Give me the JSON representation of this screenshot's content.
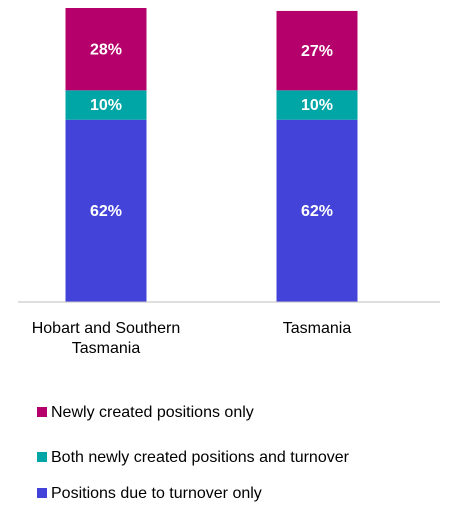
{
  "chart_data": {
    "type": "stacked_bar",
    "categories": [
      "Hobart and Southern Tasmania",
      "Tasmania"
    ],
    "series": [
      {
        "name": "Newly created positions only",
        "color": "#b5006b",
        "values": [
          28,
          27
        ],
        "value_labels": [
          "28%",
          "27%"
        ]
      },
      {
        "name": "Both newly created positions and turnover",
        "color": "#00a6a6",
        "values": [
          10,
          10
        ],
        "value_labels": [
          "10%",
          "10%"
        ]
      },
      {
        "name": "Positions due to turnover only",
        "color": "#4343d9",
        "values": [
          62,
          62
        ],
        "value_labels": [
          "62%",
          "62%"
        ]
      }
    ],
    "ylim": [
      0,
      100
    ],
    "legend": "bottom"
  }
}
